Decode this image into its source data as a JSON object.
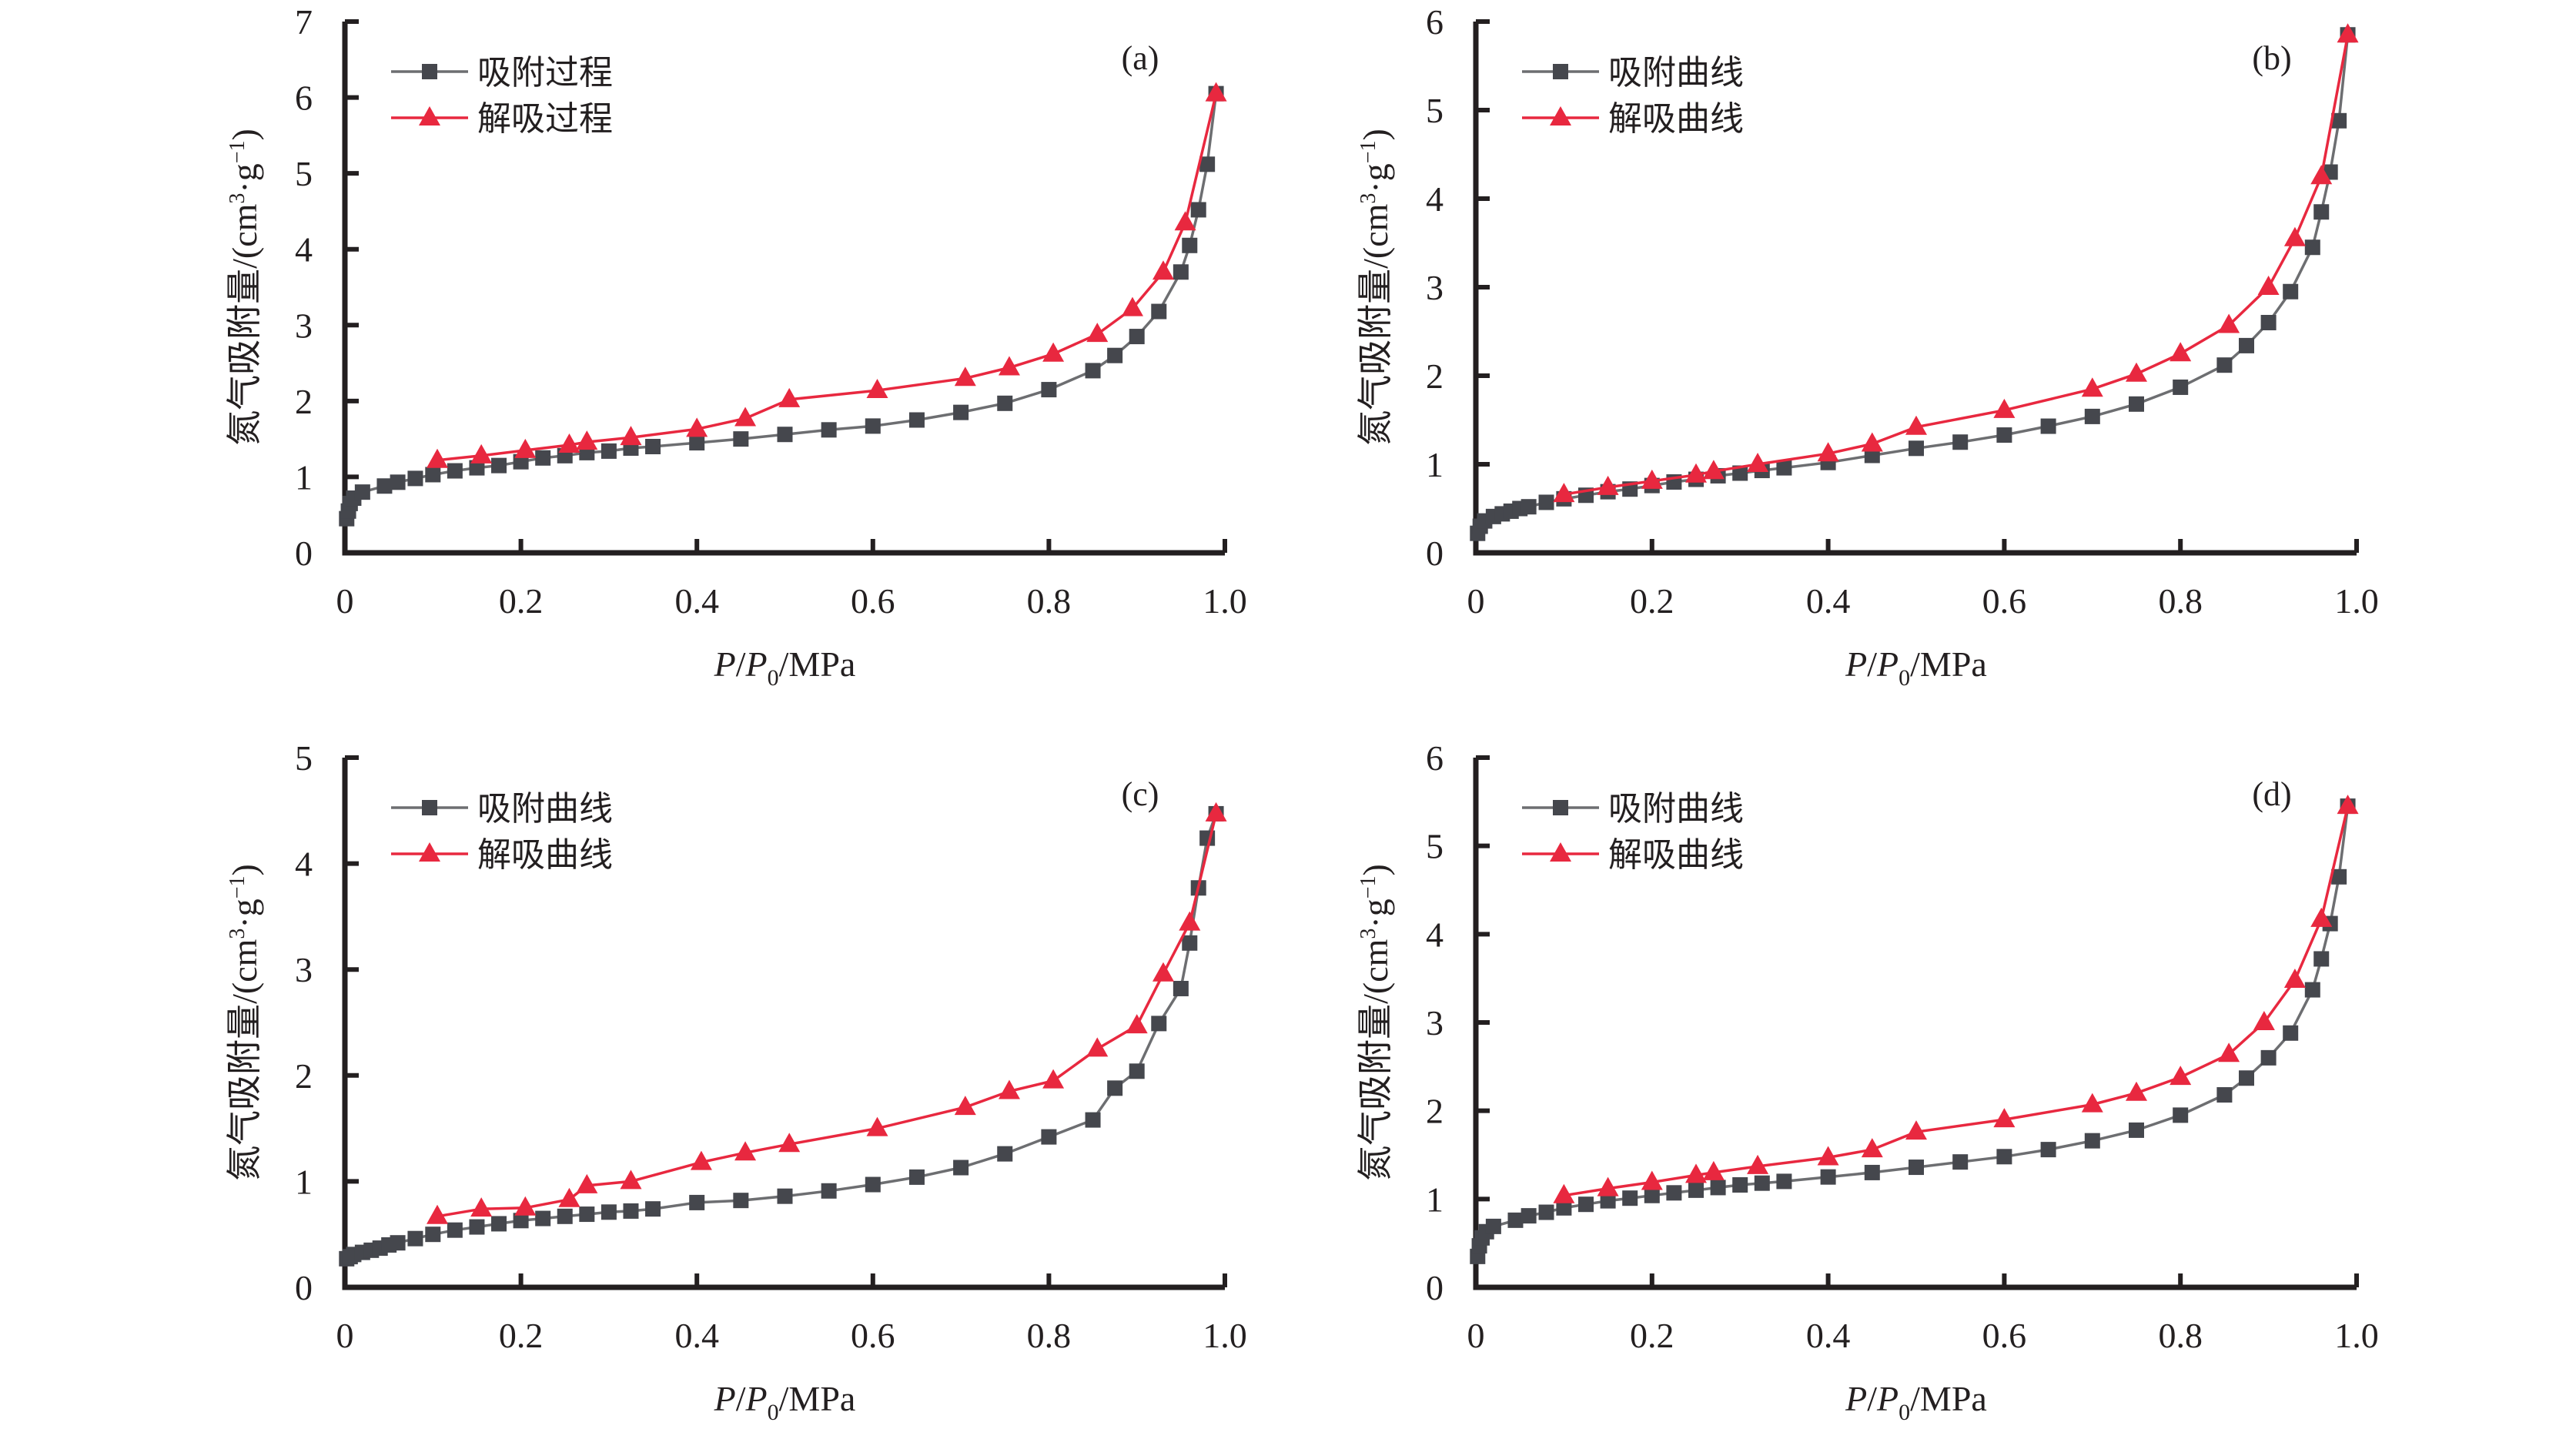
{
  "figure": {
    "y_axis_label_text": "氮气吸附量/(cm",
    "y_axis_label_sup1": "3",
    "y_axis_label_mid": "·g",
    "y_axis_label_sup2": "−1",
    "y_axis_label_end": ")",
    "x_axis_label_p": "P",
    "x_axis_label_slash": "/",
    "x_axis_label_p0": "P",
    "x_axis_label_sub": "0",
    "x_axis_label_unit": "/MPa",
    "colors": {
      "adsorption": "#45474d",
      "adsorption_line": "#6d6e71",
      "desorption": "#e8283f",
      "axis": "#231f20"
    }
  },
  "chart_data": [
    {
      "panel": "(a)",
      "type": "line",
      "xlabel": "P/P0/MPa",
      "ylabel": "氮气吸附量/(cm³·g⁻¹)",
      "xlim": [
        0,
        1.0
      ],
      "ylim": [
        0,
        7
      ],
      "xticks": [
        "0",
        "0.2",
        "0.4",
        "0.6",
        "0.8",
        "1.0"
      ],
      "yticks": [
        "0",
        "1",
        "2",
        "3",
        "4",
        "5",
        "6",
        "7"
      ],
      "grid": false,
      "legend_position": "top-left",
      "series": [
        {
          "name": "吸附过程",
          "marker": "square",
          "x": [
            0.002,
            0.004,
            0.006,
            0.01,
            0.02,
            0.045,
            0.06,
            0.08,
            0.1,
            0.125,
            0.15,
            0.175,
            0.2,
            0.225,
            0.25,
            0.275,
            0.3,
            0.325,
            0.35,
            0.4,
            0.45,
            0.5,
            0.55,
            0.6,
            0.65,
            0.7,
            0.75,
            0.8,
            0.85,
            0.875,
            0.9,
            0.925,
            0.95,
            0.96,
            0.97,
            0.98,
            0.99
          ],
          "y": [
            0.45,
            0.55,
            0.65,
            0.72,
            0.8,
            0.88,
            0.93,
            0.98,
            1.03,
            1.08,
            1.12,
            1.15,
            1.2,
            1.25,
            1.28,
            1.32,
            1.34,
            1.38,
            1.4,
            1.45,
            1.5,
            1.56,
            1.62,
            1.67,
            1.75,
            1.85,
            1.97,
            2.15,
            2.4,
            2.6,
            2.85,
            3.18,
            3.7,
            4.05,
            4.52,
            5.12,
            6.05
          ]
        },
        {
          "name": "解吸过程",
          "marker": "triangle",
          "x": [
            0.105,
            0.155,
            0.205,
            0.255,
            0.275,
            0.325,
            0.4,
            0.455,
            0.505,
            0.605,
            0.705,
            0.755,
            0.805,
            0.855,
            0.895,
            0.93,
            0.955,
            0.99
          ],
          "y": [
            1.22,
            1.28,
            1.35,
            1.42,
            1.46,
            1.52,
            1.63,
            1.77,
            2.02,
            2.14,
            2.3,
            2.44,
            2.62,
            2.88,
            3.22,
            3.7,
            4.35,
            6.05
          ]
        }
      ]
    },
    {
      "panel": "(b)",
      "type": "line",
      "xlabel": "P/P0/MPa",
      "ylabel": "氮气吸附量/(cm³·g⁻¹)",
      "xlim": [
        0,
        1.0
      ],
      "ylim": [
        0,
        6
      ],
      "xticks": [
        "0",
        "0.2",
        "0.4",
        "0.6",
        "0.8",
        "1.0"
      ],
      "yticks": [
        "0",
        "1",
        "2",
        "3",
        "4",
        "5",
        "6"
      ],
      "grid": false,
      "legend_position": "top-left",
      "series": [
        {
          "name": "吸附曲线",
          "marker": "square",
          "x": [
            0.002,
            0.005,
            0.01,
            0.02,
            0.03,
            0.04,
            0.05,
            0.06,
            0.08,
            0.1,
            0.125,
            0.15,
            0.175,
            0.2,
            0.225,
            0.25,
            0.275,
            0.3,
            0.325,
            0.35,
            0.4,
            0.45,
            0.5,
            0.55,
            0.6,
            0.65,
            0.7,
            0.75,
            0.8,
            0.85,
            0.875,
            0.9,
            0.925,
            0.95,
            0.96,
            0.97,
            0.98,
            0.99
          ],
          "y": [
            0.22,
            0.3,
            0.36,
            0.41,
            0.44,
            0.47,
            0.5,
            0.52,
            0.57,
            0.61,
            0.65,
            0.69,
            0.72,
            0.76,
            0.8,
            0.83,
            0.87,
            0.9,
            0.93,
            0.96,
            1.02,
            1.1,
            1.18,
            1.25,
            1.33,
            1.43,
            1.54,
            1.68,
            1.87,
            2.12,
            2.34,
            2.6,
            2.95,
            3.45,
            3.85,
            4.3,
            4.88,
            5.85
          ]
        },
        {
          "name": "解吸曲线",
          "marker": "triangle",
          "x": [
            0.1,
            0.15,
            0.2,
            0.25,
            0.27,
            0.32,
            0.4,
            0.45,
            0.5,
            0.6,
            0.7,
            0.75,
            0.8,
            0.855,
            0.9,
            0.93,
            0.96,
            0.99
          ],
          "y": [
            0.66,
            0.74,
            0.81,
            0.88,
            0.92,
            1.0,
            1.12,
            1.23,
            1.42,
            1.61,
            1.85,
            2.02,
            2.25,
            2.57,
            3.0,
            3.55,
            4.25,
            5.85
          ]
        }
      ]
    },
    {
      "panel": "(c)",
      "type": "line",
      "xlabel": "P/P0/MPa",
      "ylabel": "氮气吸附量/(cm³·g⁻¹)",
      "xlim": [
        0,
        1.0
      ],
      "ylim": [
        0,
        5
      ],
      "xticks": [
        "0",
        "0.2",
        "0.4",
        "0.6",
        "0.8",
        "1.0"
      ],
      "yticks": [
        "0",
        "1",
        "2",
        "3",
        "4",
        "5"
      ],
      "grid": false,
      "legend_position": "top-left",
      "series": [
        {
          "name": "吸附曲线",
          "marker": "square",
          "x": [
            0.002,
            0.006,
            0.01,
            0.02,
            0.03,
            0.04,
            0.05,
            0.06,
            0.08,
            0.1,
            0.125,
            0.15,
            0.175,
            0.2,
            0.225,
            0.25,
            0.275,
            0.3,
            0.325,
            0.35,
            0.4,
            0.45,
            0.5,
            0.55,
            0.6,
            0.65,
            0.7,
            0.75,
            0.8,
            0.85,
            0.875,
            0.9,
            0.925,
            0.95,
            0.96,
            0.97,
            0.98,
            0.99
          ],
          "y": [
            0.27,
            0.29,
            0.31,
            0.33,
            0.35,
            0.37,
            0.4,
            0.42,
            0.46,
            0.5,
            0.54,
            0.57,
            0.6,
            0.63,
            0.65,
            0.67,
            0.69,
            0.71,
            0.72,
            0.74,
            0.8,
            0.82,
            0.86,
            0.91,
            0.97,
            1.04,
            1.13,
            1.26,
            1.42,
            1.58,
            1.88,
            2.04,
            2.49,
            2.82,
            3.25,
            3.77,
            4.24,
            4.47
          ]
        },
        {
          "name": "解吸曲线",
          "marker": "triangle",
          "x": [
            0.105,
            0.155,
            0.205,
            0.255,
            0.275,
            0.325,
            0.405,
            0.455,
            0.505,
            0.605,
            0.705,
            0.755,
            0.805,
            0.855,
            0.9,
            0.93,
            0.96,
            0.99
          ],
          "y": [
            0.67,
            0.74,
            0.75,
            0.83,
            0.96,
            1.0,
            1.18,
            1.27,
            1.35,
            1.5,
            1.7,
            1.85,
            1.95,
            2.25,
            2.47,
            2.96,
            3.44,
            4.47
          ]
        }
      ]
    },
    {
      "panel": "(d)",
      "type": "line",
      "xlabel": "P/P0/MPa",
      "ylabel": "氮气吸附量/(cm³·g⁻¹)",
      "xlim": [
        0,
        1.0
      ],
      "ylim": [
        0,
        6
      ],
      "xticks": [
        "0",
        "0.2",
        "0.4",
        "0.6",
        "0.8",
        "1.0"
      ],
      "yticks": [
        "0",
        "1",
        "2",
        "3",
        "4",
        "5",
        "6"
      ],
      "grid": false,
      "legend_position": "top-left",
      "series": [
        {
          "name": "吸附曲线",
          "marker": "square",
          "x": [
            0.002,
            0.004,
            0.007,
            0.012,
            0.02,
            0.045,
            0.06,
            0.08,
            0.1,
            0.125,
            0.15,
            0.175,
            0.2,
            0.225,
            0.25,
            0.275,
            0.3,
            0.325,
            0.35,
            0.4,
            0.45,
            0.5,
            0.55,
            0.6,
            0.65,
            0.7,
            0.75,
            0.8,
            0.85,
            0.875,
            0.9,
            0.925,
            0.95,
            0.96,
            0.97,
            0.98,
            0.99
          ],
          "y": [
            0.35,
            0.47,
            0.56,
            0.63,
            0.69,
            0.76,
            0.81,
            0.85,
            0.9,
            0.94,
            0.98,
            1.01,
            1.04,
            1.07,
            1.1,
            1.13,
            1.16,
            1.18,
            1.2,
            1.25,
            1.3,
            1.36,
            1.42,
            1.48,
            1.56,
            1.66,
            1.78,
            1.95,
            2.18,
            2.37,
            2.6,
            2.88,
            3.37,
            3.72,
            4.12,
            4.65,
            5.45
          ]
        },
        {
          "name": "解吸曲线",
          "marker": "triangle",
          "x": [
            0.1,
            0.15,
            0.2,
            0.25,
            0.27,
            0.32,
            0.4,
            0.45,
            0.5,
            0.6,
            0.7,
            0.75,
            0.8,
            0.855,
            0.895,
            0.93,
            0.96,
            0.99
          ],
          "y": [
            1.04,
            1.12,
            1.19,
            1.27,
            1.3,
            1.37,
            1.47,
            1.56,
            1.76,
            1.9,
            2.07,
            2.2,
            2.38,
            2.64,
            3.0,
            3.48,
            4.17,
            5.45
          ]
        }
      ]
    }
  ]
}
